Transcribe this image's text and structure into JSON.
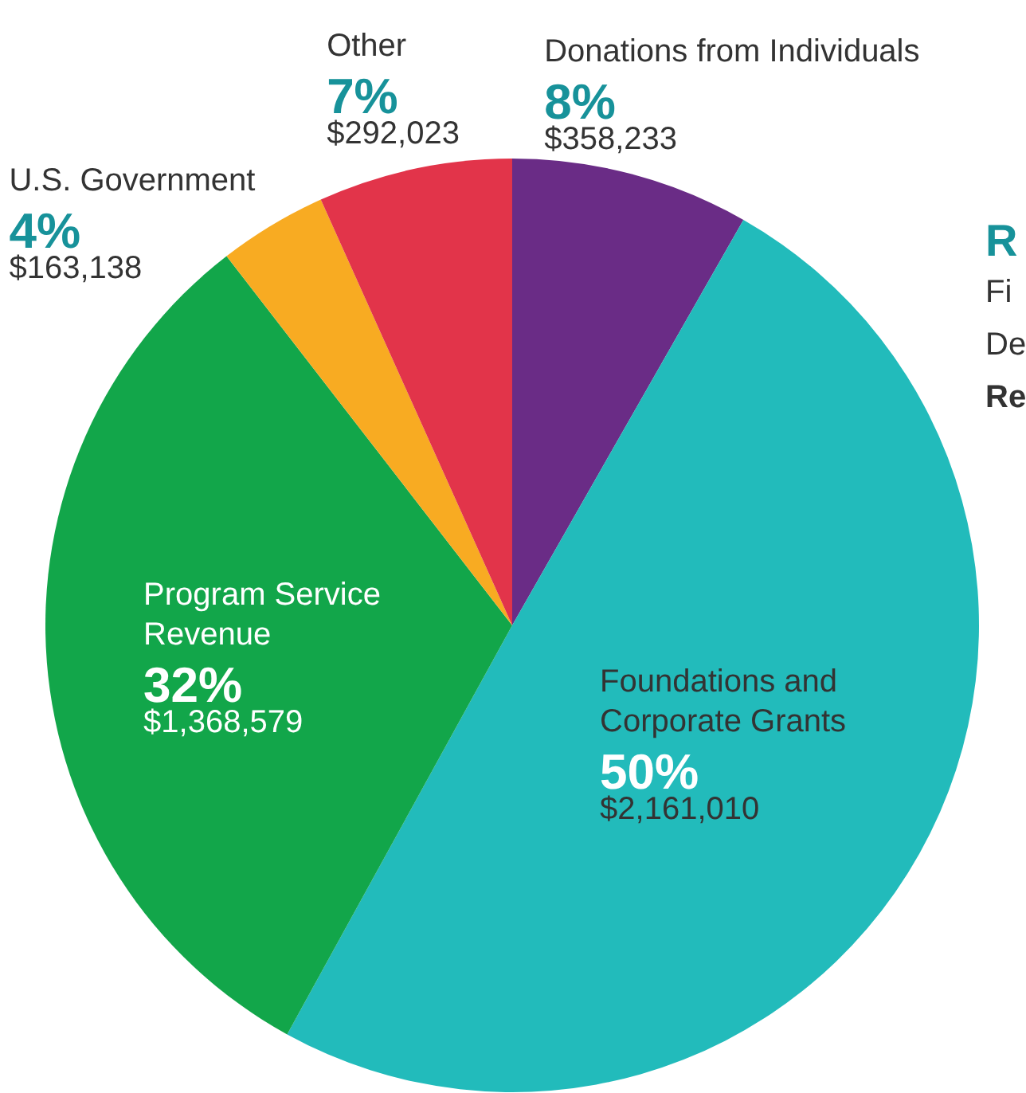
{
  "chart_data": {
    "type": "pie",
    "categories": [
      "Donations from Individuals",
      "Foundations and Corporate Grants",
      "Program Service Revenue",
      "U.S. Government",
      "Other"
    ],
    "values": [
      358233,
      2161010,
      1368579,
      163138,
      292023
    ],
    "colors": [
      "#6a2c86",
      "#22bbbb",
      "#12a64a",
      "#f8ab22",
      "#e2344a"
    ],
    "value_labels": [
      "8%\n$358,233",
      "50%\n$2,161,010",
      "32%\n$1,368,579",
      "4%\n$163,138",
      "7%\n$292,023"
    ],
    "annotations": [
      "R",
      "Fi",
      "De",
      "Re"
    ]
  }
}
